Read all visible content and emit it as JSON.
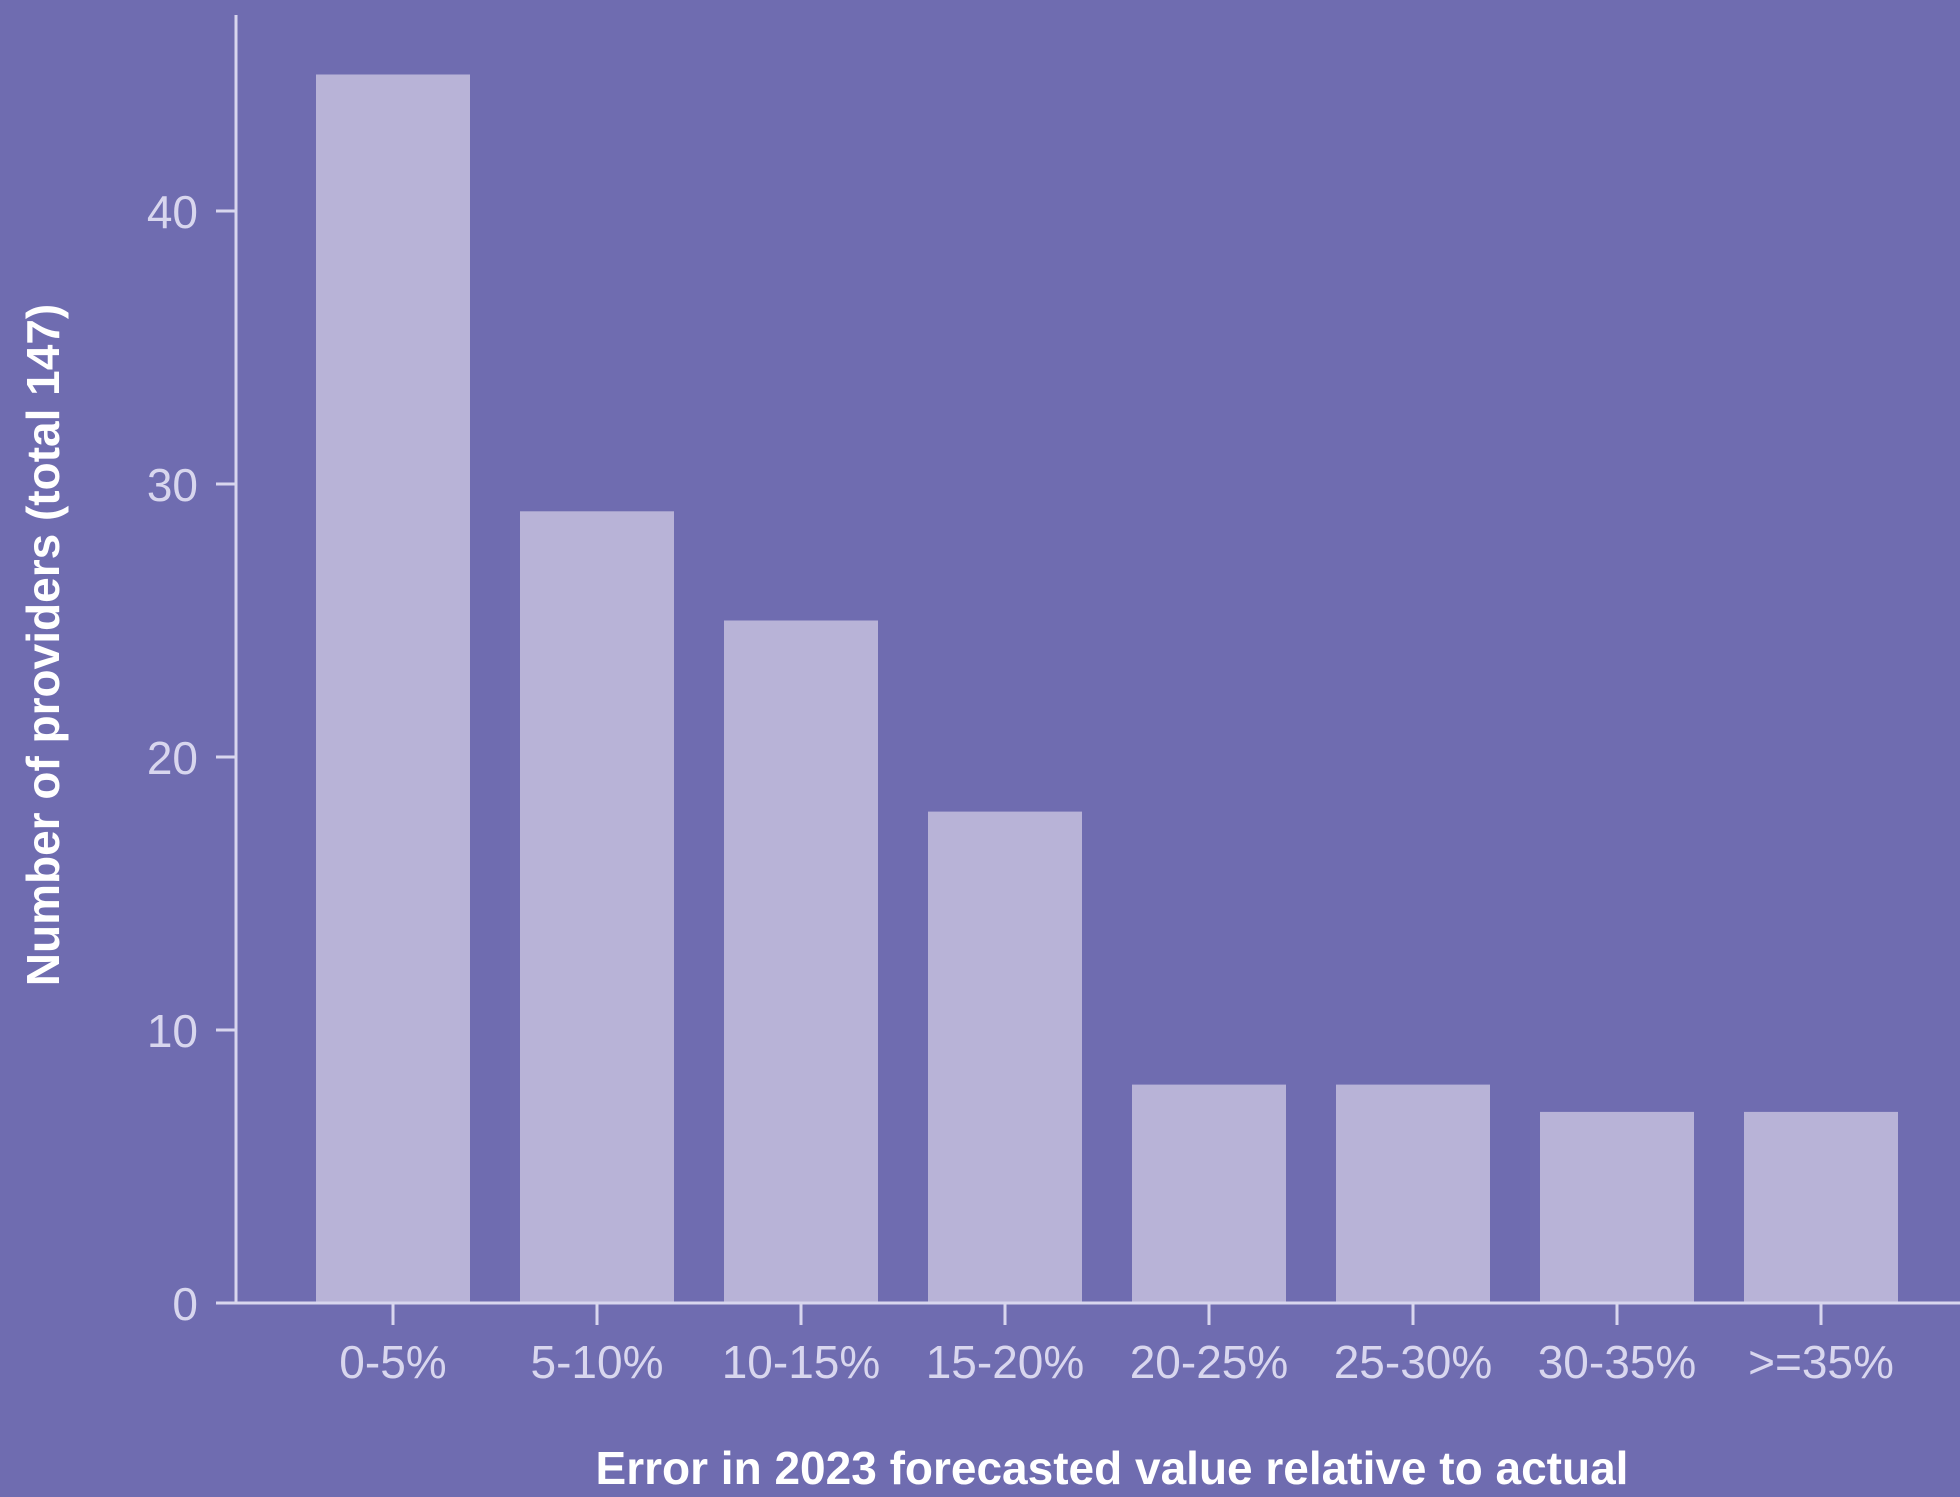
{
  "colors": {
    "background": "#6f6cb0",
    "bar": "#b8b3d7",
    "axis": "#d8d6ee",
    "tick_text": "#d8d6ee",
    "title_text": "#ffffff"
  },
  "chart_data": {
    "type": "bar",
    "title": "",
    "xlabel": "Error in 2023 forecasted value relative to actual",
    "ylabel": "Number of providers (total 147)",
    "categories": [
      "0-5%",
      "5-10%",
      "10-15%",
      "15-20%",
      "20-25%",
      "25-30%",
      "30-35%",
      ">=35%"
    ],
    "values": [
      45,
      29,
      25,
      18,
      8,
      8,
      7,
      7
    ],
    "ylim": [
      0,
      47.2
    ],
    "yticks": [
      0,
      10,
      20,
      30,
      40
    ],
    "grid": false,
    "legend": "none"
  }
}
